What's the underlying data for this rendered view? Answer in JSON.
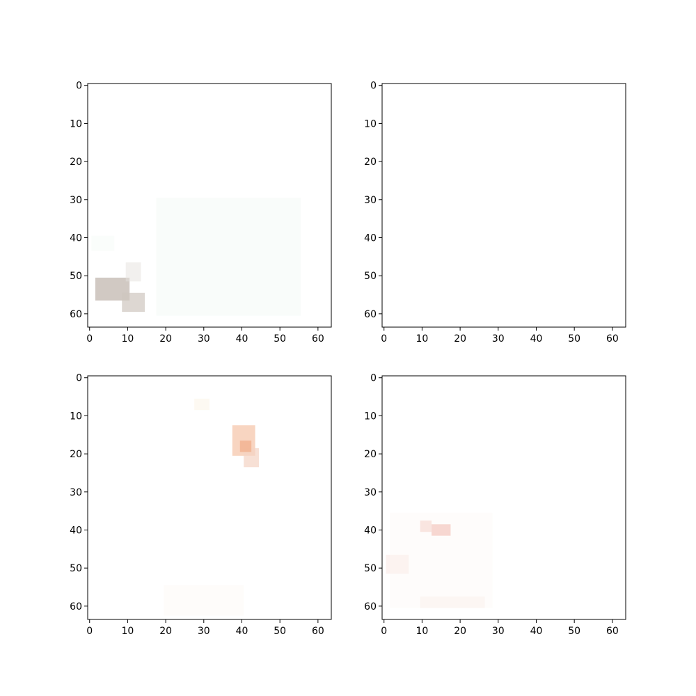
{
  "chart_data": [
    {
      "type": "heatmap",
      "title": "",
      "xlabel": "",
      "ylabel": "",
      "xlim": [
        -0.5,
        63.5
      ],
      "ylim": [
        63.5,
        -0.5
      ],
      "xticks": [
        0,
        10,
        20,
        30,
        40,
        50,
        60
      ],
      "yticks": [
        0,
        10,
        20,
        30,
        40,
        50,
        60
      ],
      "grid": false,
      "blobs": [
        {
          "x": [
            2,
            10
          ],
          "y": [
            51,
            56
          ],
          "color": "#c9bfb8",
          "intensity": 0.85
        },
        {
          "x": [
            9,
            14
          ],
          "y": [
            55,
            59
          ],
          "color": "#cfc6bf",
          "intensity": 0.7
        },
        {
          "x": [
            10,
            13
          ],
          "y": [
            47,
            51
          ],
          "color": "#e6e2de",
          "intensity": 0.5
        },
        {
          "x": [
            18,
            55
          ],
          "y": [
            30,
            60
          ],
          "color": "#eef7f2",
          "intensity": 0.35
        },
        {
          "x": [
            1,
            6
          ],
          "y": [
            40,
            43
          ],
          "color": "#eef7f2",
          "intensity": 0.3
        }
      ]
    },
    {
      "type": "heatmap",
      "title": "",
      "xlabel": "",
      "ylabel": "",
      "xlim": [
        -0.5,
        63.5
      ],
      "ylim": [
        63.5,
        -0.5
      ],
      "xticks": [
        0,
        10,
        20,
        30,
        40,
        50,
        60
      ],
      "yticks": [
        0,
        10,
        20,
        30,
        40,
        50,
        60
      ],
      "grid": false,
      "blobs": []
    },
    {
      "type": "heatmap",
      "title": "",
      "xlabel": "",
      "ylabel": "",
      "xlim": [
        -0.5,
        63.5
      ],
      "ylim": [
        63.5,
        -0.5
      ],
      "xticks": [
        0,
        10,
        20,
        30,
        40,
        50,
        60
      ],
      "yticks": [
        0,
        10,
        20,
        30,
        40,
        50,
        60
      ],
      "grid": false,
      "blobs": [
        {
          "x": [
            38,
            43
          ],
          "y": [
            13,
            20
          ],
          "color": "#f6c7ac",
          "intensity": 0.75
        },
        {
          "x": [
            41,
            44
          ],
          "y": [
            19,
            23
          ],
          "color": "#f3d3c3",
          "intensity": 0.7
        },
        {
          "x": [
            40,
            42
          ],
          "y": [
            17,
            19
          ],
          "color": "#f1b08f",
          "intensity": 0.8
        },
        {
          "x": [
            28,
            31
          ],
          "y": [
            6,
            8
          ],
          "color": "#fbf1de",
          "intensity": 0.4
        },
        {
          "x": [
            20,
            40
          ],
          "y": [
            55,
            62
          ],
          "color": "#fdf6ee",
          "intensity": 0.3
        }
      ]
    },
    {
      "type": "heatmap",
      "title": "",
      "xlabel": "",
      "ylabel": "",
      "xlim": [
        -0.5,
        63.5
      ],
      "ylim": [
        63.5,
        -0.5
      ],
      "xticks": [
        0,
        10,
        20,
        30,
        40,
        50,
        60
      ],
      "yticks": [
        0,
        10,
        20,
        30,
        40,
        50,
        60
      ],
      "grid": false,
      "blobs": [
        {
          "x": [
            10,
            12
          ],
          "y": [
            38,
            40
          ],
          "color": "#f4c8c0",
          "intensity": 0.6
        },
        {
          "x": [
            13,
            17
          ],
          "y": [
            39,
            41
          ],
          "color": "#f1b5aa",
          "intensity": 0.7
        },
        {
          "x": [
            1,
            6
          ],
          "y": [
            47,
            51
          ],
          "color": "#f9e6e2",
          "intensity": 0.5
        },
        {
          "x": [
            10,
            26
          ],
          "y": [
            58,
            60
          ],
          "color": "#f8eae7",
          "intensity": 0.45
        },
        {
          "x": [
            2,
            28
          ],
          "y": [
            36,
            60
          ],
          "color": "#fcf4f2",
          "intensity": 0.3
        }
      ]
    }
  ]
}
